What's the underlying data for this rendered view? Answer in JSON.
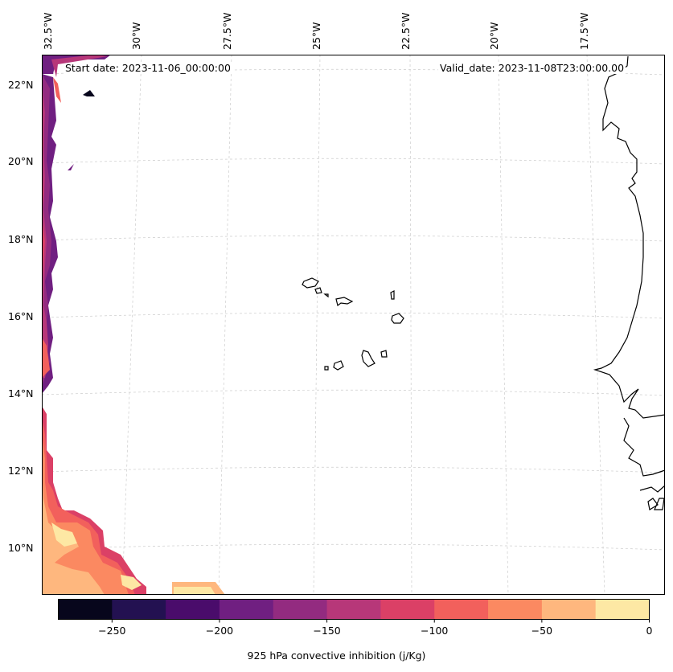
{
  "header": {
    "start_date": "Start date: 2023-11-06_00:00:00",
    "valid_date": "Valid_date: 2023-11-08T23:00:00.00"
  },
  "axes": {
    "lon_labels": [
      "32.5°W",
      "30°W",
      "27.5°W",
      "25°W",
      "22.5°W",
      "20°W",
      "17.5°W"
    ],
    "lat_labels": [
      "22°N",
      "20°N",
      "18°N",
      "16°N",
      "14°N",
      "12°N",
      "10°N"
    ]
  },
  "colorbar": {
    "label": "925 hPa convective inhibition (j/Kg)",
    "levels": [
      -275,
      -250,
      -225,
      -200,
      -175,
      -150,
      -125,
      -100,
      -75,
      -50,
      -25,
      0
    ],
    "tick_labels": [
      "−250",
      "−200",
      "−150",
      "−100",
      "−50",
      "0"
    ],
    "tick_values": [
      -250,
      -200,
      -150,
      -100,
      -50,
      0
    ],
    "colors": [
      "#07061c",
      "#231151",
      "#4a0c6b",
      "#701f81",
      "#932b80",
      "#b73779",
      "#db4066",
      "#f2605c",
      "#fb8961",
      "#feb77e",
      "#fde8a4"
    ]
  },
  "map": {
    "coastline_color": "#000000",
    "gridline_color": "#cccccc",
    "features": [
      "cape-verde-islands",
      "west-africa-coastline"
    ]
  }
}
